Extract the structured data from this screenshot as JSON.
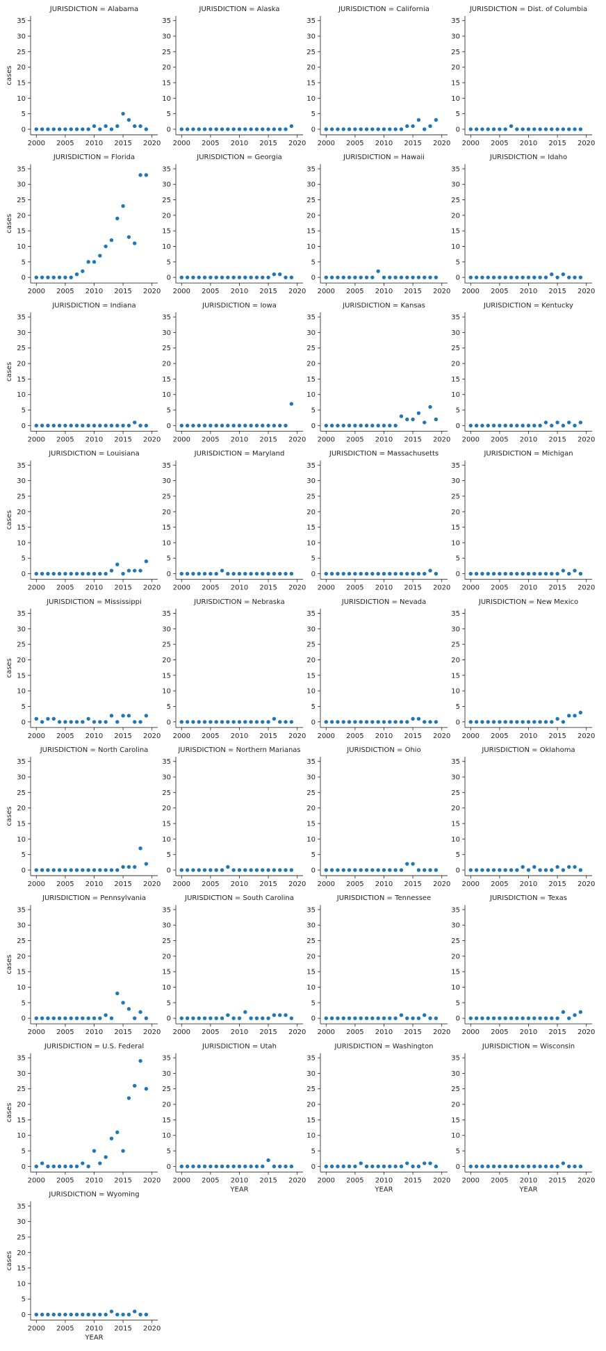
{
  "chart_data": {
    "type": "scatter",
    "layout": "facet-grid",
    "xlabel": "YEAR",
    "ylabel": "cases",
    "title_prefix": "JURISDICTION = ",
    "xlim": [
      1999,
      2021
    ],
    "ylim": [
      -1.8,
      36.5
    ],
    "xticks": [
      2000,
      2005,
      2010,
      2015,
      2020
    ],
    "yticks": [
      0,
      5,
      10,
      15,
      20,
      25,
      30,
      35
    ],
    "marker_color": "#1f77b4",
    "x": [
      2000,
      2001,
      2002,
      2003,
      2004,
      2005,
      2006,
      2007,
      2008,
      2009,
      2010,
      2011,
      2012,
      2013,
      2014,
      2015,
      2016,
      2017,
      2018,
      2019
    ],
    "panels": [
      {
        "name": "Alabama",
        "values": [
          0,
          0,
          0,
          0,
          0,
          0,
          0,
          0,
          0,
          0,
          1,
          0,
          1,
          0,
          1,
          5,
          3,
          1,
          1,
          0
        ]
      },
      {
        "name": "Alaska",
        "values": [
          0,
          0,
          0,
          0,
          0,
          0,
          0,
          0,
          0,
          0,
          0,
          0,
          0,
          0,
          0,
          0,
          0,
          0,
          0,
          1
        ]
      },
      {
        "name": "California",
        "values": [
          0,
          0,
          0,
          0,
          0,
          0,
          0,
          0,
          0,
          0,
          0,
          0,
          0,
          0,
          1,
          1,
          3,
          0,
          1,
          3
        ]
      },
      {
        "name": "Dist. of Columbia",
        "values": [
          0,
          0,
          0,
          0,
          0,
          0,
          0,
          1,
          0,
          0,
          0,
          0,
          0,
          0,
          0,
          0,
          0,
          0,
          0,
          0
        ]
      },
      {
        "name": "Florida",
        "values": [
          0,
          0,
          0,
          0,
          0,
          0,
          0,
          1,
          2,
          5,
          5,
          7,
          10,
          12,
          19,
          23,
          13,
          11,
          33,
          33
        ]
      },
      {
        "name": "Georgia",
        "values": [
          0,
          0,
          0,
          0,
          0,
          0,
          0,
          0,
          0,
          0,
          0,
          0,
          0,
          0,
          0,
          0,
          1,
          1,
          0,
          0
        ]
      },
      {
        "name": "Hawaii",
        "values": [
          0,
          0,
          0,
          0,
          0,
          0,
          0,
          0,
          0,
          2,
          0,
          0,
          0,
          0,
          0,
          0,
          0,
          0,
          0,
          0
        ]
      },
      {
        "name": "Idaho",
        "values": [
          0,
          0,
          0,
          0,
          0,
          0,
          0,
          0,
          0,
          0,
          0,
          0,
          0,
          0,
          1,
          0,
          1,
          0,
          0,
          0
        ]
      },
      {
        "name": "Indiana",
        "values": [
          0,
          0,
          0,
          0,
          0,
          0,
          0,
          0,
          0,
          0,
          0,
          0,
          0,
          0,
          0,
          0,
          0,
          1,
          0,
          0
        ]
      },
      {
        "name": "Iowa",
        "values": [
          0,
          0,
          0,
          0,
          0,
          0,
          0,
          0,
          0,
          0,
          0,
          0,
          0,
          0,
          0,
          0,
          0,
          0,
          0,
          7
        ]
      },
      {
        "name": "Kansas",
        "values": [
          0,
          0,
          0,
          0,
          0,
          0,
          0,
          0,
          0,
          0,
          0,
          0,
          0,
          3,
          2,
          2,
          4,
          1,
          6,
          2
        ]
      },
      {
        "name": "Kentucky",
        "values": [
          0,
          0,
          0,
          0,
          0,
          0,
          0,
          0,
          0,
          0,
          0,
          0,
          0,
          1,
          0,
          1,
          0,
          1,
          0,
          1
        ]
      },
      {
        "name": "Louisiana",
        "values": [
          0,
          0,
          0,
          0,
          0,
          0,
          0,
          0,
          0,
          0,
          0,
          0,
          0,
          1,
          3,
          0,
          1,
          1,
          1,
          4
        ]
      },
      {
        "name": "Maryland",
        "values": [
          0,
          0,
          0,
          0,
          0,
          0,
          0,
          1,
          0,
          0,
          0,
          0,
          0,
          0,
          0,
          0,
          0,
          0,
          0,
          0
        ]
      },
      {
        "name": "Massachusetts",
        "values": [
          0,
          0,
          0,
          0,
          0,
          0,
          0,
          0,
          0,
          0,
          0,
          0,
          0,
          0,
          0,
          0,
          0,
          0,
          1,
          0
        ]
      },
      {
        "name": "Michigan",
        "values": [
          0,
          0,
          0,
          0,
          0,
          0,
          0,
          0,
          0,
          0,
          0,
          0,
          0,
          0,
          0,
          0,
          1,
          0,
          1,
          0
        ]
      },
      {
        "name": "Mississippi",
        "values": [
          1,
          0,
          1,
          1,
          0,
          0,
          0,
          0,
          0,
          1,
          0,
          0,
          0,
          2,
          0,
          2,
          2,
          0,
          0,
          2
        ]
      },
      {
        "name": "Nebraska",
        "values": [
          0,
          0,
          0,
          0,
          0,
          0,
          0,
          0,
          0,
          0,
          0,
          0,
          0,
          0,
          0,
          0,
          1,
          0,
          0,
          0
        ]
      },
      {
        "name": "Nevada",
        "values": [
          0,
          0,
          0,
          0,
          0,
          0,
          0,
          0,
          0,
          0,
          0,
          0,
          0,
          0,
          0,
          1,
          1,
          0,
          0,
          0
        ]
      },
      {
        "name": "New Mexico",
        "values": [
          0,
          0,
          0,
          0,
          0,
          0,
          0,
          0,
          0,
          0,
          0,
          0,
          0,
          0,
          0,
          1,
          0,
          2,
          2,
          3
        ]
      },
      {
        "name": "North Carolina",
        "values": [
          0,
          0,
          0,
          0,
          0,
          0,
          0,
          0,
          0,
          0,
          0,
          0,
          0,
          0,
          0,
          1,
          1,
          1,
          7,
          2
        ]
      },
      {
        "name": "Northern Marianas",
        "values": [
          0,
          0,
          0,
          0,
          0,
          0,
          0,
          0,
          1,
          0,
          0,
          0,
          0,
          0,
          0,
          0,
          0,
          0,
          0,
          0
        ]
      },
      {
        "name": "Ohio",
        "values": [
          0,
          0,
          0,
          0,
          0,
          0,
          0,
          0,
          0,
          0,
          0,
          0,
          0,
          0,
          2,
          2,
          0,
          0,
          0,
          0
        ]
      },
      {
        "name": "Oklahoma",
        "values": [
          0,
          0,
          0,
          0,
          0,
          0,
          0,
          0,
          0,
          1,
          0,
          1,
          0,
          0,
          0,
          1,
          0,
          1,
          1,
          0
        ]
      },
      {
        "name": "Pennsylvania",
        "values": [
          0,
          0,
          0,
          0,
          0,
          0,
          0,
          0,
          0,
          0,
          0,
          0,
          1,
          0,
          8,
          5,
          3,
          0,
          2,
          0
        ]
      },
      {
        "name": "South Carolina",
        "values": [
          0,
          0,
          0,
          0,
          0,
          0,
          0,
          0,
          1,
          0,
          0,
          2,
          0,
          0,
          0,
          0,
          1,
          1,
          1,
          0
        ]
      },
      {
        "name": "Tennessee",
        "values": [
          0,
          0,
          0,
          0,
          0,
          0,
          0,
          0,
          0,
          0,
          0,
          0,
          0,
          1,
          0,
          0,
          0,
          1,
          0,
          0
        ]
      },
      {
        "name": "Texas",
        "values": [
          0,
          0,
          0,
          0,
          0,
          0,
          0,
          0,
          0,
          0,
          0,
          0,
          0,
          0,
          0,
          0,
          2,
          0,
          1,
          2
        ]
      },
      {
        "name": "U.S. Federal",
        "values": [
          0,
          1,
          0,
          0,
          0,
          0,
          0,
          0,
          1,
          0,
          5,
          1,
          3,
          9,
          11,
          5,
          22,
          26,
          34,
          25
        ]
      },
      {
        "name": "Utah",
        "values": [
          0,
          0,
          0,
          0,
          0,
          0,
          0,
          0,
          0,
          0,
          0,
          0,
          0,
          0,
          0,
          2,
          0,
          0,
          0,
          0
        ]
      },
      {
        "name": "Washington",
        "values": [
          0,
          0,
          0,
          0,
          0,
          0,
          1,
          0,
          0,
          0,
          0,
          0,
          0,
          0,
          1,
          0,
          0,
          1,
          1,
          0
        ]
      },
      {
        "name": "Wisconsin",
        "values": [
          0,
          0,
          0,
          0,
          0,
          0,
          0,
          0,
          0,
          0,
          0,
          0,
          0,
          0,
          0,
          0,
          1,
          0,
          0,
          0
        ]
      },
      {
        "name": "Wyoming",
        "values": [
          0,
          0,
          0,
          0,
          0,
          0,
          0,
          0,
          0,
          0,
          0,
          0,
          0,
          1,
          0,
          0,
          0,
          1,
          0,
          0
        ]
      }
    ]
  }
}
